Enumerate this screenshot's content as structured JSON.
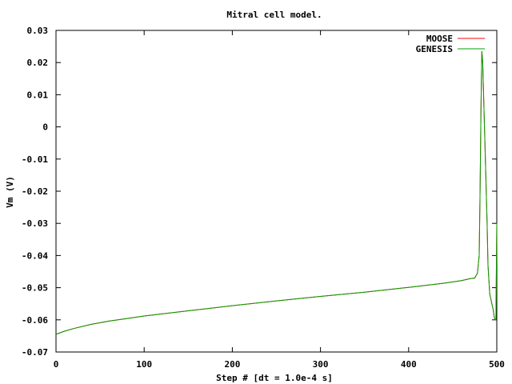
{
  "chart_data": {
    "type": "line",
    "title": "Mitral cell model.",
    "xlabel": "Step # [dt = 1.0e-4 s]",
    "ylabel": "Vm (V)",
    "xlim": [
      0,
      500
    ],
    "ylim": [
      -0.07,
      0.03
    ],
    "x_ticks": [
      "0",
      "100",
      "200",
      "300",
      "400",
      "500"
    ],
    "y_ticks": [
      "0.03",
      "0.02",
      "0.01",
      "0",
      "-0.01",
      "-0.02",
      "-0.03",
      "-0.04",
      "-0.05",
      "-0.06",
      "-0.07"
    ],
    "x_tick_values": [
      0,
      100,
      200,
      300,
      400,
      500
    ],
    "y_tick_values": [
      0.03,
      0.02,
      0.01,
      0,
      -0.01,
      -0.02,
      -0.03,
      -0.04,
      -0.05,
      -0.06,
      -0.07
    ],
    "grid": false,
    "legend_position": "top-right",
    "series": [
      {
        "name": "MOOSE",
        "color": "#ff0000",
        "x": [
          0,
          10,
          20,
          40,
          60,
          80,
          100,
          150,
          200,
          250,
          300,
          350,
          400,
          440,
          460,
          470,
          475,
          478,
          480,
          481,
          482,
          483,
          484,
          485,
          486,
          487,
          488,
          489,
          490,
          492,
          494,
          496,
          497,
          498,
          499,
          500
        ],
        "y": [
          -0.0645,
          -0.0635,
          -0.0627,
          -0.0614,
          -0.0604,
          -0.0596,
          -0.0588,
          -0.0572,
          -0.0556,
          -0.0541,
          -0.0527,
          -0.0514,
          -0.0499,
          -0.0486,
          -0.0478,
          -0.0472,
          -0.047,
          -0.0455,
          -0.04,
          -0.02,
          0.005,
          0.0235,
          0.02,
          0.01,
          0.0,
          -0.01,
          -0.02,
          -0.03,
          -0.043,
          -0.052,
          -0.0545,
          -0.057,
          -0.059,
          -0.06,
          -0.06,
          -0.03
        ]
      },
      {
        "name": "GENESIS",
        "color": "#00a000",
        "x": [
          0,
          10,
          20,
          40,
          60,
          80,
          100,
          150,
          200,
          250,
          300,
          350,
          400,
          440,
          460,
          470,
          475,
          478,
          480,
          481,
          482,
          483,
          484,
          485,
          486,
          487,
          488,
          489,
          490,
          492,
          494,
          496,
          497,
          498,
          499,
          500
        ],
        "y": [
          -0.0645,
          -0.0635,
          -0.0627,
          -0.0614,
          -0.0604,
          -0.0596,
          -0.0588,
          -0.0572,
          -0.0556,
          -0.0541,
          -0.0527,
          -0.0514,
          -0.0499,
          -0.0486,
          -0.0478,
          -0.0472,
          -0.047,
          -0.0455,
          -0.04,
          -0.02,
          0.005,
          0.0235,
          0.02,
          0.01,
          0.0,
          -0.01,
          -0.02,
          -0.03,
          -0.043,
          -0.052,
          -0.0545,
          -0.057,
          -0.059,
          -0.06,
          -0.06,
          -0.03
        ]
      }
    ]
  }
}
